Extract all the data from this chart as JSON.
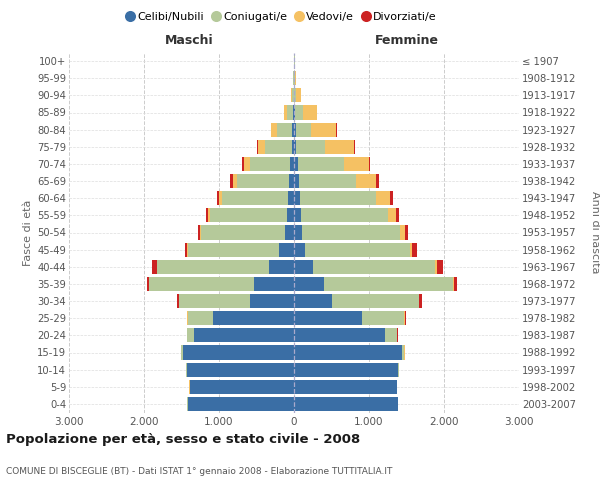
{
  "age_groups": [
    "0-4",
    "5-9",
    "10-14",
    "15-19",
    "20-24",
    "25-29",
    "30-34",
    "35-39",
    "40-44",
    "45-49",
    "50-54",
    "55-59",
    "60-64",
    "65-69",
    "70-74",
    "75-79",
    "80-84",
    "85-89",
    "90-94",
    "95-99",
    "100+"
  ],
  "birth_years": [
    "2003-2007",
    "1998-2002",
    "1993-1997",
    "1988-1992",
    "1983-1987",
    "1978-1982",
    "1973-1977",
    "1968-1972",
    "1963-1967",
    "1958-1962",
    "1953-1957",
    "1948-1952",
    "1943-1947",
    "1938-1942",
    "1933-1937",
    "1928-1932",
    "1923-1927",
    "1918-1922",
    "1913-1917",
    "1908-1912",
    "≤ 1907"
  ],
  "maschi_celibe": [
    1420,
    1390,
    1430,
    1480,
    1340,
    1080,
    590,
    540,
    340,
    205,
    125,
    95,
    85,
    65,
    55,
    32,
    22,
    12,
    5,
    2,
    2
  ],
  "maschi_coniugato": [
    2,
    3,
    5,
    22,
    85,
    340,
    940,
    1390,
    1490,
    1210,
    1110,
    1030,
    880,
    690,
    530,
    360,
    205,
    85,
    22,
    5,
    3
  ],
  "maschi_vedovo": [
    0,
    1,
    1,
    2,
    2,
    2,
    2,
    2,
    3,
    6,
    12,
    17,
    32,
    62,
    82,
    92,
    82,
    42,
    12,
    3,
    1
  ],
  "maschi_divorziato": [
    0,
    0,
    0,
    1,
    3,
    5,
    22,
    32,
    62,
    37,
    37,
    32,
    32,
    32,
    22,
    12,
    0,
    0,
    0,
    0,
    0
  ],
  "femmine_nubile": [
    1390,
    1370,
    1390,
    1440,
    1210,
    910,
    505,
    405,
    255,
    152,
    102,
    92,
    82,
    62,
    52,
    32,
    22,
    12,
    5,
    2,
    2
  ],
  "femmine_coniugata": [
    2,
    3,
    8,
    32,
    165,
    560,
    1160,
    1710,
    1630,
    1390,
    1310,
    1160,
    1010,
    770,
    610,
    385,
    205,
    105,
    27,
    12,
    5
  ],
  "femmine_vedova": [
    0,
    0,
    1,
    2,
    3,
    5,
    5,
    12,
    22,
    37,
    62,
    102,
    185,
    265,
    335,
    385,
    335,
    185,
    62,
    17,
    5
  ],
  "femmine_divorziata": [
    0,
    0,
    1,
    2,
    5,
    12,
    32,
    47,
    82,
    62,
    52,
    47,
    37,
    32,
    22,
    17,
    5,
    0,
    0,
    0,
    0
  ],
  "color_celibe": "#3a6ea5",
  "color_coniugato": "#b5c99a",
  "color_vedovo": "#f5c163",
  "color_divorziato": "#cc2222",
  "xlim": 3000,
  "xtick_vals": [
    -3000,
    -2000,
    -1000,
    0,
    1000,
    2000,
    3000
  ],
  "xtick_labels": [
    "3.000",
    "2.000",
    "1.000",
    "0",
    "1.000",
    "2.000",
    "3.000"
  ],
  "title": "Popolazione per età, sesso e stato civile - 2008",
  "subtitle": "COMUNE DI BISCEGLIE (BT) - Dati ISTAT 1° gennaio 2008 - Elaborazione TUTTITALIA.IT",
  "ylabel_left": "Fasce di età",
  "ylabel_right": "Anni di nascita",
  "label_maschi": "Maschi",
  "label_femmine": "Femmine",
  "legend_labels": [
    "Celibi/Nubili",
    "Coniugati/e",
    "Vedovi/e",
    "Divorziati/e"
  ]
}
